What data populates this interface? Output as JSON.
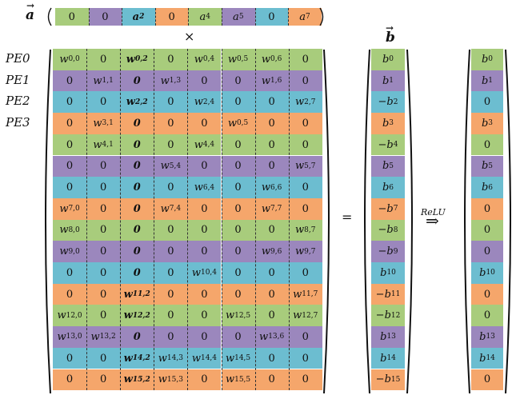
{
  "colors": {
    "G": "#a8cc7c",
    "P": "#9b87bd",
    "B": "#6cbdd0",
    "O": "#f5a66b"
  },
  "vector_a": {
    "label": "a",
    "cells": [
      {
        "t": "0",
        "c": "G"
      },
      {
        "t": "0",
        "c": "P"
      },
      {
        "t": "a_2",
        "c": "B",
        "b": true
      },
      {
        "t": "0",
        "c": "O"
      },
      {
        "t": "a_4",
        "c": "G"
      },
      {
        "t": "a_5",
        "c": "P"
      },
      {
        "t": "0",
        "c": "B"
      },
      {
        "t": "a_7",
        "c": "O"
      }
    ]
  },
  "times_symbol": "×",
  "equals_symbol": "=",
  "relu_label": "ReLU",
  "relu_arrow": "⇒",
  "pe_labels": [
    "PE0",
    "PE1",
    "PE2",
    "PE3"
  ],
  "vector_b_label": "b",
  "matrix": [
    {
      "c": "G",
      "v": [
        "w_{0,0}",
        "0",
        "*w_{0,2}",
        "0",
        "w_{0,4}",
        "w_{0,5}",
        "w_{0,6}",
        "0"
      ]
    },
    {
      "c": "P",
      "v": [
        "0",
        "w_{1,1}",
        "*0",
        "w_{1,3}",
        "0",
        "0",
        "w_{1,6}",
        "0"
      ]
    },
    {
      "c": "B",
      "v": [
        "0",
        "0",
        "*w_{2,2}",
        "0",
        "w_{2,4}",
        "0",
        "0",
        "w_{2,7}"
      ]
    },
    {
      "c": "O",
      "v": [
        "0",
        "w_{3,1}",
        "*0",
        "0",
        "0",
        "w_{0,5}",
        "0",
        "0"
      ]
    },
    {
      "c": "G",
      "v": [
        "0",
        "w_{4,1}",
        "*0",
        "0",
        "w_{4,4}",
        "0",
        "0",
        "0"
      ]
    },
    {
      "c": "P",
      "v": [
        "0",
        "0",
        "*0",
        "w_{5,4}",
        "0",
        "0",
        "0",
        "w_{5,7}"
      ]
    },
    {
      "c": "B",
      "v": [
        "0",
        "0",
        "*0",
        "0",
        "w_{6,4}",
        "0",
        "w_{6,6}",
        "0"
      ]
    },
    {
      "c": "O",
      "v": [
        "w_{7,0}",
        "0",
        "*0",
        "w_{7,4}",
        "0",
        "0",
        "w_{7,7}",
        "0"
      ]
    },
    {
      "c": "G",
      "v": [
        "w_{8,0}",
        "0",
        "*0",
        "0",
        "0",
        "0",
        "0",
        "w_{8,7}"
      ]
    },
    {
      "c": "P",
      "v": [
        "w_{9,0}",
        "0",
        "*0",
        "0",
        "0",
        "0",
        "w_{9,6}",
        "w_{9,7}"
      ]
    },
    {
      "c": "B",
      "v": [
        "0",
        "0",
        "*0",
        "0",
        "w_{10,4}",
        "0",
        "0",
        "0"
      ]
    },
    {
      "c": "O",
      "v": [
        "0",
        "0",
        "*w_{11,2}",
        "0",
        "0",
        "0",
        "0",
        "w_{11,7}"
      ]
    },
    {
      "c": "G",
      "v": [
        "w_{12,0}",
        "0",
        "*w_{12,2}",
        "0",
        "0",
        "w_{12,5}",
        "0",
        "w_{12,7}"
      ]
    },
    {
      "c": "P",
      "v": [
        "w_{13,0}",
        "w_{13,2}",
        "*0",
        "0",
        "0",
        "0",
        "w_{13,6}",
        "0"
      ]
    },
    {
      "c": "B",
      "v": [
        "0",
        "0",
        "*w_{14,2}",
        "w_{14,3}",
        "w_{14,4}",
        "w_{14,5}",
        "0",
        "0"
      ]
    },
    {
      "c": "O",
      "v": [
        "0",
        "0",
        "*w_{15,2}",
        "w_{15,3}",
        "0",
        "w_{15,5}",
        "0",
        "0"
      ]
    }
  ],
  "vector_b": [
    "b_0",
    "b_1",
    "-b_2",
    "b_3",
    "-b_4",
    "b_5",
    "b_6",
    "-b_7",
    "-b_8",
    "-b_9",
    "b_{10}",
    "-b_{11}",
    "-b_{12}",
    "b_{13}",
    "b_{14}",
    "-b_{15}"
  ],
  "vector_result": [
    "b_0",
    "b_1",
    "0",
    "b_3",
    "0",
    "b_5",
    "b_6",
    "0",
    "0",
    "0",
    "b_{10}",
    "0",
    "0",
    "b_{13}",
    "b_{14}",
    "0"
  ]
}
